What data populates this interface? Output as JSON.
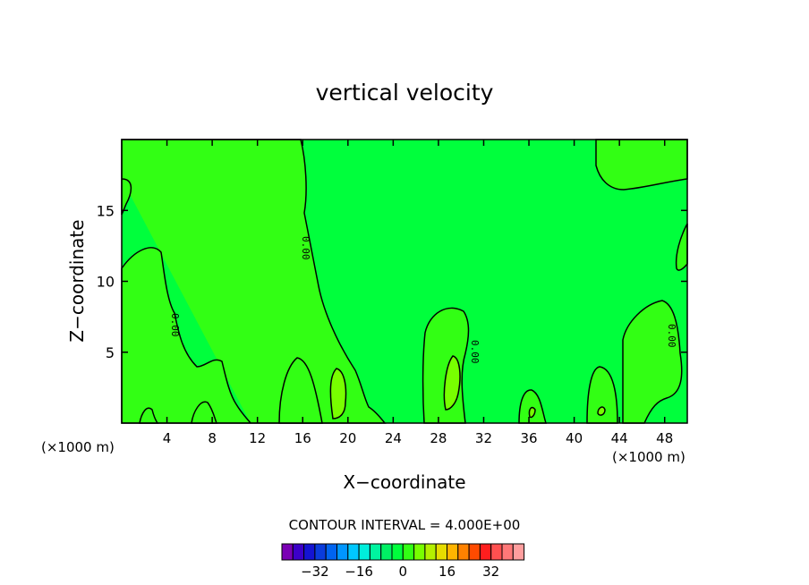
{
  "chart_data": {
    "type": "heatmap",
    "title": "vertical velocity",
    "xlabel": "X−coordinate",
    "ylabel": "Z−coordinate",
    "x_unit_left": "(×1000 m)",
    "x_unit_right": "(×1000 m)",
    "xlim": [
      0,
      50
    ],
    "ylim": [
      0,
      20
    ],
    "x_ticks": [
      4,
      8,
      12,
      16,
      20,
      24,
      28,
      32,
      36,
      40,
      44,
      48
    ],
    "y_ticks": [
      5,
      10,
      15
    ],
    "contour_label": "0.00",
    "contour_interval_text": "CONTOUR INTERVAL = 4.000E+00",
    "colorbar": {
      "colors": [
        "#7a00b4",
        "#3c00c8",
        "#1414d2",
        "#0a3cdc",
        "#0064f0",
        "#0096ff",
        "#00c8ff",
        "#00eedc",
        "#00f5a0",
        "#00f064",
        "#00ff3c",
        "#32ff14",
        "#78ff00",
        "#b4f000",
        "#e6dc00",
        "#ffb400",
        "#ff8200",
        "#ff4b00",
        "#ff1e1e",
        "#ff5050",
        "#ff7878",
        "#ff9e9e"
      ],
      "tick_labels": [
        "−32",
        "−16",
        "0",
        "16",
        "32"
      ],
      "tick_values": [
        -32,
        -16,
        0,
        16,
        32
      ]
    },
    "background_level_color": "#00ff3c",
    "positive_region_color": "#32ff14",
    "stronger_region_color": "#78ff00"
  }
}
